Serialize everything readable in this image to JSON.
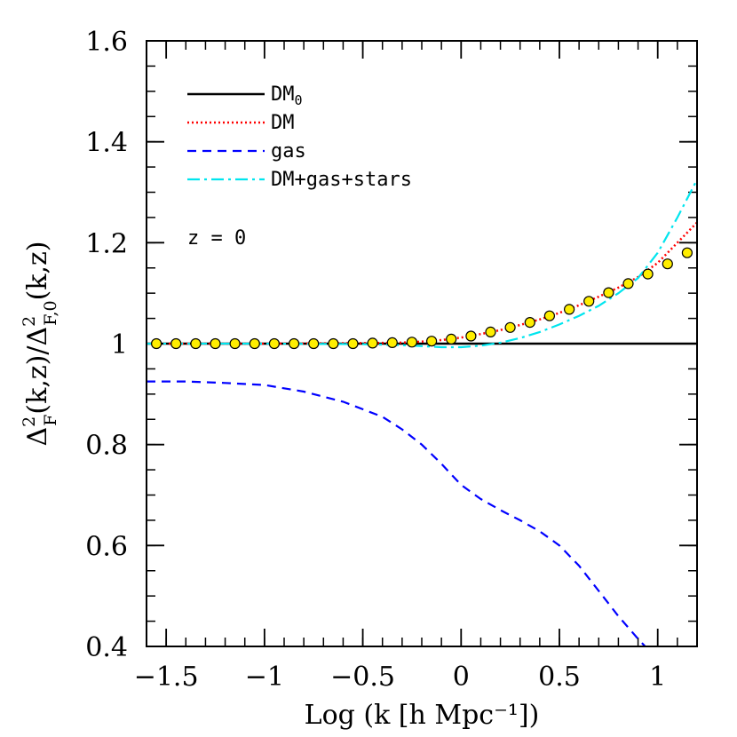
{
  "chart_data": {
    "type": "line",
    "title": "",
    "xlabel": "Log (k [h Mpc⁻¹])",
    "ylabel": {
      "prefix": "Δ",
      "sup1": "2",
      "sub1": "F",
      "mid": "(k,z)/Δ",
      "sup2": "2",
      "sub2": "F,0",
      "suffix": "(k,z)"
    },
    "xlim": [
      -1.6,
      1.2
    ],
    "ylim": [
      0.4,
      1.6
    ],
    "xticks": [
      {
        "value": -1.5,
        "label": "−1.5"
      },
      {
        "value": -1.0,
        "label": "−1"
      },
      {
        "value": -0.5,
        "label": "−0.5"
      },
      {
        "value": 0.0,
        "label": "0"
      },
      {
        "value": 0.5,
        "label": "0.5"
      },
      {
        "value": 1.0,
        "label": "1"
      }
    ],
    "yticks": [
      {
        "value": 0.4,
        "label": "0.4"
      },
      {
        "value": 0.6,
        "label": "0.6"
      },
      {
        "value": 0.8,
        "label": "0.8"
      },
      {
        "value": 1.0,
        "label": "1"
      },
      {
        "value": 1.2,
        "label": "1.2"
      },
      {
        "value": 1.4,
        "label": "1.4"
      },
      {
        "value": 1.6,
        "label": "1.6"
      }
    ],
    "x_minor_step": 0.1,
    "y_minor_step": 0.05,
    "annotation": "z = 0",
    "legend_position": "top-left",
    "grid": false,
    "series": [
      {
        "name": "DM",
        "name_sub": "0",
        "color": "#000000",
        "style": "solid",
        "x": [
          -1.6,
          1.2
        ],
        "y": [
          1.0,
          1.0
        ]
      },
      {
        "name": "DM",
        "color": "#ff0000",
        "style": "dotted",
        "x": [
          -1.6,
          -1.0,
          -0.5,
          -0.3,
          -0.2,
          -0.1,
          0.0,
          0.1,
          0.2,
          0.3,
          0.4,
          0.5,
          0.6,
          0.7,
          0.8,
          0.9,
          1.0,
          1.1,
          1.2
        ],
        "y": [
          1.0,
          1.0,
          1.001,
          1.002,
          1.004,
          1.007,
          1.012,
          1.019,
          1.027,
          1.037,
          1.048,
          1.061,
          1.076,
          1.093,
          1.111,
          1.132,
          1.16,
          1.2,
          1.24
        ]
      },
      {
        "name": "gas",
        "color": "#0000ff",
        "style": "dashed",
        "x": [
          -1.6,
          -1.4,
          -1.2,
          -1.0,
          -0.8,
          -0.6,
          -0.4,
          -0.3,
          -0.2,
          -0.1,
          0.0,
          0.1,
          0.2,
          0.3,
          0.4,
          0.5,
          0.6,
          0.7,
          0.8,
          0.9,
          0.96
        ],
        "y": [
          0.925,
          0.925,
          0.922,
          0.918,
          0.905,
          0.885,
          0.855,
          0.83,
          0.8,
          0.762,
          0.72,
          0.692,
          0.67,
          0.65,
          0.628,
          0.6,
          0.56,
          0.51,
          0.46,
          0.415,
          0.39
        ]
      },
      {
        "name": "DM+gas+stars",
        "color": "#00e5ee",
        "style": "dashdot",
        "x": [
          -1.6,
          -1.0,
          -0.5,
          -0.3,
          -0.2,
          -0.1,
          0.0,
          0.1,
          0.2,
          0.3,
          0.4,
          0.5,
          0.6,
          0.7,
          0.8,
          0.9,
          1.0,
          1.1,
          1.2
        ],
        "y": [
          1.0,
          1.0,
          0.999,
          0.997,
          0.995,
          0.993,
          0.993,
          0.996,
          1.002,
          1.011,
          1.023,
          1.038,
          1.055,
          1.075,
          1.1,
          1.13,
          1.18,
          1.25,
          1.325
        ]
      }
    ],
    "points": {
      "color": "#ffee00",
      "edge": "#000000",
      "x": [
        -1.55,
        -1.45,
        -1.35,
        -1.25,
        -1.15,
        -1.05,
        -0.95,
        -0.85,
        -0.75,
        -0.65,
        -0.55,
        -0.45,
        -0.35,
        -0.25,
        -0.15,
        -0.05,
        0.05,
        0.15,
        0.25,
        0.35,
        0.45,
        0.55,
        0.65,
        0.75,
        0.85,
        0.95,
        1.05,
        1.15
      ],
      "y": [
        1.0,
        1.0,
        1.0,
        1.0,
        1.0,
        1.0,
        1.0,
        1.0,
        1.0,
        1.0,
        1.0,
        1.001,
        1.002,
        1.003,
        1.005,
        1.009,
        1.015,
        1.023,
        1.032,
        1.042,
        1.055,
        1.068,
        1.084,
        1.101,
        1.119,
        1.138,
        1.158,
        1.18
      ]
    }
  }
}
